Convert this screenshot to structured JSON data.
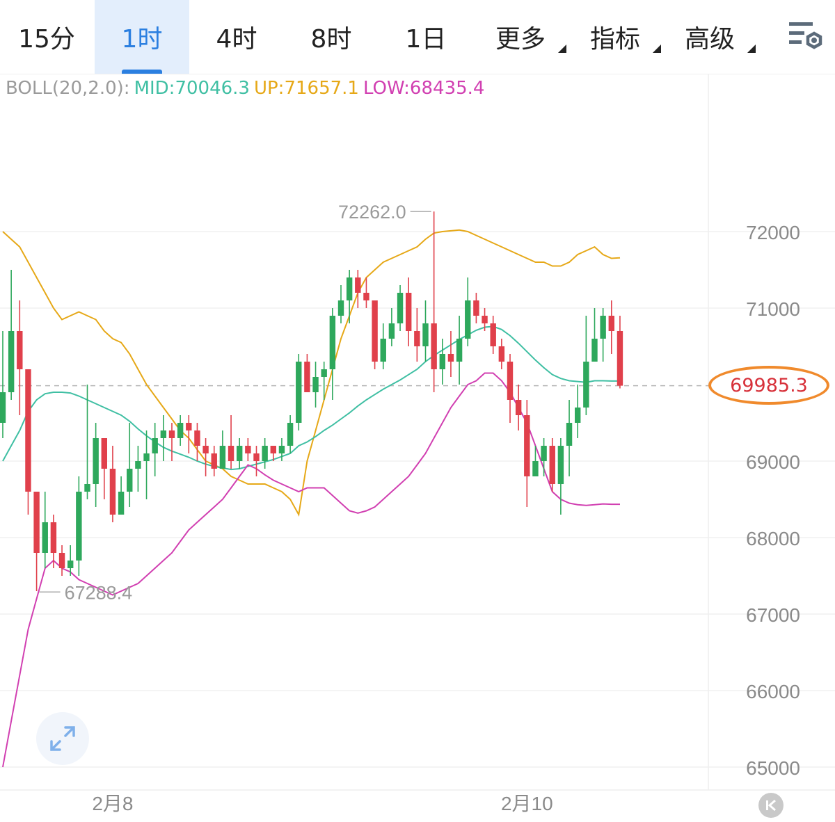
{
  "tabs": [
    {
      "label": "15分",
      "active": false,
      "dropdown": false
    },
    {
      "label": "1时",
      "active": true,
      "dropdown": false
    },
    {
      "label": "4时",
      "active": false,
      "dropdown": false
    },
    {
      "label": "8时",
      "active": false,
      "dropdown": false
    },
    {
      "label": "1日",
      "active": false,
      "dropdown": false
    },
    {
      "label": "更多",
      "active": false,
      "dropdown": true
    },
    {
      "label": "指标",
      "active": false,
      "dropdown": true
    },
    {
      "label": "高级",
      "active": false,
      "dropdown": true
    }
  ],
  "settings_icon": "chart-settings-icon",
  "indicator": {
    "name": "BOLL(20,2.0):",
    "mid": "MID:70046.3",
    "up": "UP:71657.1",
    "low": "LOW:68435.4"
  },
  "current_price": "69985.3",
  "high_marker": "72262.0",
  "low_marker": "67288.4",
  "colors": {
    "up_candle": "#2ea85c",
    "down_candle": "#e0404b",
    "mid_line": "#3fbfa3",
    "upper_band": "#e6a817",
    "lower_band": "#d13fb1",
    "active_tab": "#2b7fe0",
    "price_highlight": "#f08a2c"
  },
  "chart_data": {
    "type": "candlestick",
    "interval": "1时",
    "y_ticks": [
      72000,
      71000,
      69000,
      68000,
      67000,
      66000,
      65000
    ],
    "ylim": [
      64800,
      73200
    ],
    "x_labels": [
      {
        "index": 13,
        "label": "2月8"
      },
      {
        "index": 62,
        "label": "2月10"
      }
    ],
    "candles": [
      [
        69500,
        69900,
        70700,
        69300
      ],
      [
        69900,
        70700,
        71500,
        69800
      ],
      [
        70700,
        70200,
        71100,
        69600
      ],
      [
        70200,
        68600,
        70200,
        68300
      ],
      [
        68600,
        67800,
        68600,
        67300
      ],
      [
        67800,
        68200,
        68600,
        67600
      ],
      [
        68200,
        67800,
        68300,
        67600
      ],
      [
        67800,
        67600,
        67900,
        67500
      ],
      [
        67600,
        67700,
        67900,
        67500
      ],
      [
        67700,
        68600,
        68800,
        67500
      ],
      [
        68600,
        68700,
        70000,
        68500
      ],
      [
        68700,
        69300,
        69500,
        68400
      ],
      [
        69300,
        68900,
        69300,
        68500
      ],
      [
        68900,
        68300,
        69200,
        68200
      ],
      [
        68300,
        68600,
        68800,
        68300
      ],
      [
        68600,
        68900,
        69500,
        68400
      ],
      [
        68900,
        69000,
        69200,
        68600
      ],
      [
        69000,
        69100,
        69400,
        68500
      ],
      [
        69100,
        69300,
        69500,
        68800
      ],
      [
        69300,
        69400,
        69600,
        69000
      ],
      [
        69400,
        69300,
        69500,
        69000
      ],
      [
        69300,
        69500,
        69600,
        69200
      ],
      [
        69500,
        69400,
        69600,
        69100
      ],
      [
        69400,
        69200,
        69500,
        69000
      ],
      [
        69200,
        69100,
        69300,
        68800
      ],
      [
        69100,
        68900,
        69200,
        68800
      ],
      [
        68900,
        69200,
        69400,
        68900
      ],
      [
        69200,
        69000,
        69600,
        68900
      ],
      [
        69000,
        69200,
        69300,
        68900
      ],
      [
        69200,
        69100,
        69300,
        69000
      ],
      [
        69100,
        69000,
        69200,
        68800
      ],
      [
        69000,
        69200,
        69300,
        68900
      ],
      [
        69200,
        69100,
        69200,
        69000
      ],
      [
        69100,
        69200,
        69300,
        69000
      ],
      [
        69200,
        69500,
        69600,
        69100
      ],
      [
        69500,
        70300,
        70400,
        69400
      ],
      [
        70300,
        69900,
        70400,
        69900
      ],
      [
        69900,
        70100,
        70300,
        69700
      ],
      [
        70100,
        70200,
        70300,
        69800
      ],
      [
        70200,
        70900,
        71000,
        69800
      ],
      [
        70900,
        71100,
        71300,
        70800
      ],
      [
        71100,
        71400,
        71500,
        70800
      ],
      [
        71400,
        71200,
        71500,
        71000
      ],
      [
        71200,
        71100,
        71400,
        71000
      ],
      [
        71100,
        70300,
        71100,
        70200
      ],
      [
        70300,
        70600,
        70800,
        70200
      ],
      [
        70600,
        70800,
        71000,
        70500
      ],
      [
        70800,
        71200,
        71300,
        70700
      ],
      [
        71200,
        70700,
        71400,
        70500
      ],
      [
        70700,
        70500,
        71000,
        70300
      ],
      [
        70500,
        70800,
        71100,
        70300
      ],
      [
        70800,
        70200,
        72262,
        69900
      ],
      [
        70200,
        70400,
        70600,
        70000
      ],
      [
        70400,
        70300,
        70700,
        70100
      ],
      [
        70300,
        70600,
        70900,
        70000
      ],
      [
        70600,
        71100,
        71400,
        70500
      ],
      [
        71100,
        70900,
        71200,
        70800
      ],
      [
        70900,
        70800,
        71000,
        70700
      ],
      [
        70800,
        70500,
        70900,
        70400
      ],
      [
        70500,
        70300,
        70600,
        70200
      ],
      [
        70300,
        69800,
        70400,
        69500
      ],
      [
        69800,
        69600,
        70000,
        69400
      ],
      [
        69600,
        68800,
        69800,
        68400
      ],
      [
        68800,
        69000,
        69200,
        68800
      ],
      [
        69000,
        69200,
        69300,
        68800
      ],
      [
        69200,
        68700,
        69300,
        68600
      ],
      [
        68700,
        69200,
        69300,
        68300
      ],
      [
        69200,
        69500,
        69800,
        68800
      ],
      [
        69500,
        69700,
        70000,
        69300
      ],
      [
        69700,
        70300,
        70900,
        69600
      ],
      [
        70300,
        70600,
        71000,
        70300
      ],
      [
        70600,
        70900,
        71000,
        70300
      ],
      [
        70900,
        70700,
        71100,
        70400
      ],
      [
        70700,
        69985.3,
        70900,
        69950
      ]
    ],
    "upper_band": [
      72000,
      71900,
      71800,
      71600,
      71400,
      71200,
      71000,
      70850,
      70900,
      70950,
      70900,
      70850,
      70700,
      70600,
      70550,
      70400,
      70200,
      70000,
      69850,
      69700,
      69550,
      69400,
      69300,
      69150,
      69000,
      68950,
      68900,
      68800,
      68750,
      68700,
      68700,
      68700,
      68650,
      68600,
      68500,
      68300,
      69000,
      69400,
      69800,
      70200,
      70600,
      70900,
      71200,
      71400,
      71500,
      71600,
      71650,
      71700,
      71750,
      71800,
      71900,
      71980,
      72000,
      72010,
      72020,
      72000,
      71950,
      71900,
      71850,
      71800,
      71750,
      71700,
      71650,
      71600,
      71600,
      71550,
      71550,
      71600,
      71700,
      71750,
      71800,
      71700,
      71650,
      71657
    ],
    "middle_band": [
      69000,
      69200,
      69400,
      69650,
      69800,
      69880,
      69900,
      69900,
      69890,
      69850,
      69800,
      69750,
      69700,
      69650,
      69600,
      69520,
      69420,
      69330,
      69250,
      69180,
      69130,
      69090,
      69050,
      69000,
      68960,
      68930,
      68910,
      68890,
      68900,
      68930,
      68960,
      68990,
      69020,
      69060,
      69100,
      69200,
      69250,
      69320,
      69400,
      69470,
      69550,
      69630,
      69720,
      69800,
      69870,
      69940,
      70000,
      70060,
      70130,
      70200,
      70300,
      70380,
      70450,
      70520,
      70590,
      70650,
      70710,
      70750,
      70760,
      70720,
      70640,
      70540,
      70430,
      70320,
      70220,
      70130,
      70080,
      70050,
      70040,
      70030,
      70050,
      70050,
      70046,
      70046
    ],
    "lower_band": [
      65000,
      65600,
      66200,
      66800,
      67200,
      67600,
      67700,
      67600,
      67550,
      67450,
      67400,
      67350,
      67300,
      67250,
      67300,
      67350,
      67400,
      67500,
      67600,
      67700,
      67800,
      67950,
      68100,
      68200,
      68300,
      68400,
      68500,
      68650,
      68800,
      68950,
      68900,
      68820,
      68750,
      68700,
      68650,
      68600,
      68650,
      68650,
      68650,
      68550,
      68450,
      68350,
      68320,
      68350,
      68400,
      68500,
      68600,
      68700,
      68800,
      68950,
      69100,
      69300,
      69500,
      69700,
      69850,
      70000,
      70050,
      70150,
      70150,
      70050,
      69900,
      69700,
      69500,
      69200,
      68900,
      68600,
      68500,
      68450,
      68430,
      68420,
      68430,
      68440,
      68435,
      68435
    ]
  }
}
